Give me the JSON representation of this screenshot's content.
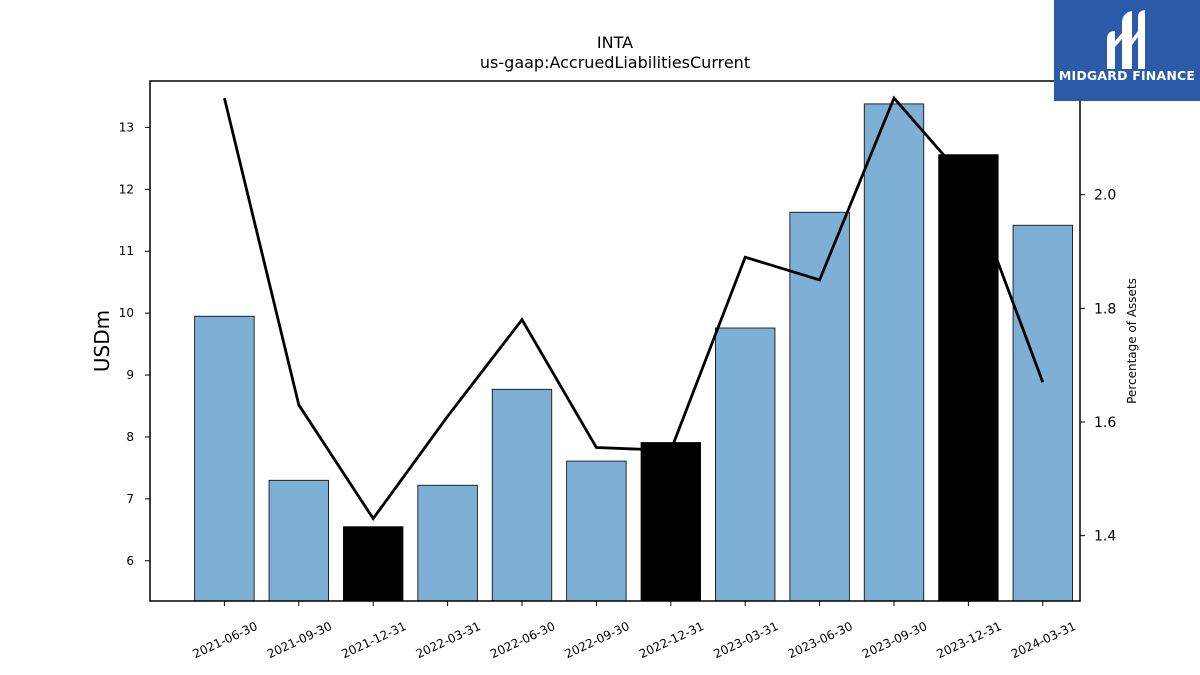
{
  "brand": {
    "name": "MIDGARD FINANCE",
    "logo_icon": "midgard-logo-icon",
    "background": "#2b5ba8"
  },
  "chart_data": {
    "type": "bar",
    "title": "INTA",
    "subtitle": "us-gaap:AccruedLiabilitiesCurrent",
    "ylabel": "USDm",
    "y2label": "Percentage of Assets",
    "categories": [
      "2021-06-30",
      "2021-09-30",
      "2021-12-31",
      "2022-03-31",
      "2022-06-30",
      "2022-09-30",
      "2022-12-31",
      "2023-03-31",
      "2023-06-30",
      "2023-09-30",
      "2023-12-31",
      "2024-03-31"
    ],
    "series": [
      {
        "name": "",
        "type": "bar",
        "axis": "left",
        "values": [
          9.95,
          7.3,
          6.55,
          7.22,
          8.77,
          7.61,
          7.91,
          9.76,
          11.63,
          13.38,
          12.56,
          11.42
        ],
        "colors": [
          "#7eb0d5",
          "#7eb0d5",
          "#000000",
          "#7eb0d5",
          "#7eb0d5",
          "#7eb0d5",
          "#000000",
          "#7eb0d5",
          "#7eb0d5",
          "#7eb0d5",
          "#000000",
          "#7eb0d5"
        ]
      },
      {
        "name": "",
        "type": "line",
        "axis": "right",
        "color": "#000000",
        "values": [
          2.17,
          1.63,
          1.43,
          1.61,
          1.78,
          1.555,
          1.55,
          1.89,
          1.85,
          2.17,
          2.02,
          1.67
        ]
      }
    ],
    "ylim": [
      5.35,
      13.75
    ],
    "y_ticks": [
      6,
      7,
      8,
      9,
      10,
      11,
      12,
      13
    ],
    "y2lim": [
      1.285,
      2.2
    ],
    "y2_ticks": [
      "1.4",
      "1.6",
      "1.8",
      "2.0"
    ],
    "grid": false,
    "legend": "none"
  }
}
